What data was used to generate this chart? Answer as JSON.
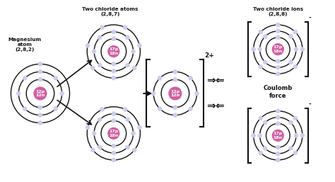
{
  "bg_color": "#ffffff",
  "nucleus_color": "#d060a0",
  "electron_color": "#8888cc",
  "electron_face": "#ccccee",
  "orbit_color": "#111111",
  "bracket_color": "#111111",
  "text_color": "#111111",
  "arrow_color": "#111111",
  "mg_nucleus_text": "12p\n12n",
  "cl_nucleus_text": "17p\n18n",
  "mg_label": "Magnesium\natom\n(2,8,2)",
  "cl_atoms_label": "Two chloride atoms\n(2,8,7)",
  "cl_ions_label": "Two chloride ions\n(2,8,8)",
  "coulomb_label": "Coulomb\nforce",
  "mg_ion_charge": "2+",
  "cl_ion_charge": "-"
}
